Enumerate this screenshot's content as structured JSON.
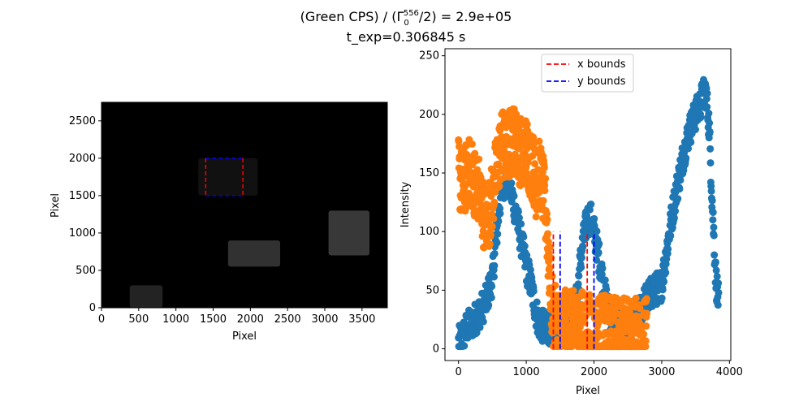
{
  "figure": {
    "title_line1_prefix": "(Green CPS) / (Γ",
    "title_line1_sup": "556",
    "title_line1_sub": "0",
    "title_line1_suffix": "/2) = 2.9e+05",
    "title_line2": "t_exp=0.306845 s"
  },
  "chart_data": [
    {
      "type": "heatmap",
      "description_kind": "grayscale camera image with region of interest box",
      "xlabel": "Pixel",
      "ylabel": "Pixel",
      "xlim": [
        0,
        3840
      ],
      "ylim": [
        0,
        2748
      ],
      "xticks": [
        0,
        500,
        1000,
        1500,
        2000,
        2500,
        3000,
        3500
      ],
      "yticks": [
        0,
        500,
        1000,
        1500,
        2000,
        2500
      ],
      "colormap": "gray",
      "background_color": "#000000",
      "roi_box": {
        "x_bounds": [
          1400,
          1900
        ],
        "y_bounds": [
          1500,
          2000
        ],
        "x_color": "#ff0000",
        "y_color": "#0000ff",
        "style": "dashed"
      },
      "bright_regions": [
        {
          "x": [
            380,
            820
          ],
          "y": [
            0,
            300
          ],
          "level": 0.25
        },
        {
          "x": [
            1700,
            2400
          ],
          "y": [
            550,
            900
          ],
          "level": 0.35
        },
        {
          "x": [
            3050,
            3600
          ],
          "y": [
            700,
            1300
          ],
          "level": 0.4
        },
        {
          "x": [
            1300,
            2100
          ],
          "y": [
            1500,
            2000
          ],
          "level": 0.12
        }
      ]
    },
    {
      "type": "scatter",
      "xlabel": "Pixel",
      "ylabel": "Intensity",
      "xlim": [
        -200,
        4020
      ],
      "ylim": [
        -10,
        256
      ],
      "xticks": [
        0,
        1000,
        2000,
        3000,
        4000
      ],
      "yticks": [
        0,
        50,
        100,
        150,
        200,
        250
      ],
      "legend_placement": "top-center",
      "series": [
        {
          "color": "#1f77b4",
          "x_range": [
            0,
            3840
          ],
          "profile_x": [
            0,
            60,
            120,
            200,
            300,
            400,
            500,
            550,
            600,
            650,
            700,
            750,
            800,
            850,
            900,
            950,
            1000,
            1050,
            1100,
            1150,
            1200,
            1300,
            1400,
            1500,
            1600,
            1700,
            1750,
            1800,
            1850,
            1900,
            1950,
            2000,
            2050,
            2100,
            2150,
            2200,
            2300,
            2400,
            2500,
            2600,
            2700,
            2800,
            2900,
            3000,
            3100,
            3200,
            3300,
            3400,
            3500,
            3550,
            3600,
            3650,
            3700,
            3750,
            3800,
            3840
          ],
          "profile_y": [
            5,
            10,
            18,
            22,
            30,
            40,
            60,
            90,
            120,
            140,
            145,
            140,
            128,
            115,
            100,
            85,
            70,
            60,
            45,
            30,
            20,
            18,
            18,
            18,
            17,
            25,
            45,
            75,
            95,
            110,
            112,
            100,
            85,
            70,
            50,
            35,
            22,
            18,
            18,
            22,
            35,
            45,
            50,
            55,
            95,
            130,
            160,
            185,
            200,
            205,
            215,
            220,
            190,
            120,
            60,
            40
          ],
          "spread": 14
        },
        {
          "color": "#ff7f0e",
          "x_range": [
            0,
            2780
          ],
          "profile_x": [
            0,
            50,
            100,
            150,
            200,
            250,
            300,
            350,
            400,
            450,
            500,
            550,
            600,
            650,
            700,
            750,
            800,
            850,
            900,
            950,
            1000,
            1050,
            1100,
            1150,
            1200,
            1250,
            1300,
            1350,
            1400,
            1500,
            1600,
            1700,
            1800,
            1900,
            2000,
            2100,
            2200,
            2300,
            2400,
            2500,
            2600,
            2700,
            2780
          ],
          "profile_y": [
            150,
            140,
            145,
            150,
            150,
            140,
            135,
            120,
            110,
            115,
            130,
            150,
            165,
            175,
            170,
            175,
            180,
            175,
            170,
            165,
            170,
            160,
            155,
            140,
            150,
            135,
            110,
            60,
            25,
            22,
            20,
            20,
            20,
            18,
            16,
            16,
            16,
            16,
            16,
            14,
            14,
            14,
            14
          ],
          "spread": 30
        }
      ],
      "lines": [
        {
          "name": "x bounds",
          "color": "#ff0000",
          "positions": [
            1400,
            1900
          ],
          "y_range": [
            0,
            100
          ],
          "style": "dashed"
        },
        {
          "name": "y bounds",
          "color": "#0000ff",
          "positions": [
            1500,
            2000
          ],
          "y_range": [
            0,
            100
          ],
          "style": "dashed"
        }
      ],
      "legend": [
        {
          "label": "x bounds",
          "color": "#ff0000"
        },
        {
          "label": "y bounds",
          "color": "#0000ff"
        }
      ]
    }
  ]
}
